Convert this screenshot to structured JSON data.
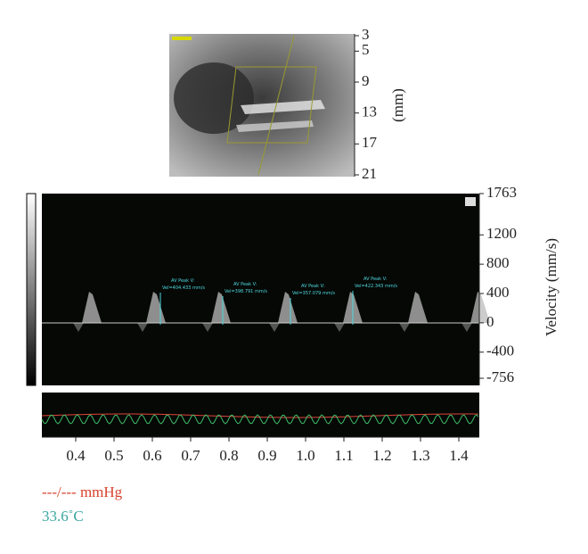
{
  "depth_axis": {
    "ticks": [
      3,
      5,
      9,
      13,
      17,
      21
    ],
    "label": "(mm)"
  },
  "velocity_axis": {
    "ticks": [
      1763,
      1200,
      800,
      400,
      0,
      -400,
      -756
    ],
    "label": "Velocity (mm/s)"
  },
  "annotations": [
    {
      "title": "AV Peak V:",
      "value": "Vel=404.433 mm/s"
    },
    {
      "title": "AV Peak V:",
      "value": "Vel=398.791 mm/s"
    },
    {
      "title": "AV Peak V:",
      "value": "Vel=357.079 mm/s"
    },
    {
      "title": "AV Peak V:",
      "value": "Vel=422.343 mm/s"
    }
  ],
  "time_axis": {
    "ticks": [
      0.4,
      0.5,
      0.6,
      0.7,
      0.8,
      0.9,
      {
        "value": 1,
        "label": "1.0"
      },
      1.1,
      1.2,
      1.3,
      1.4
    ]
  },
  "pressure": "---/--- mmHg",
  "temperature": "33.6˚C"
}
